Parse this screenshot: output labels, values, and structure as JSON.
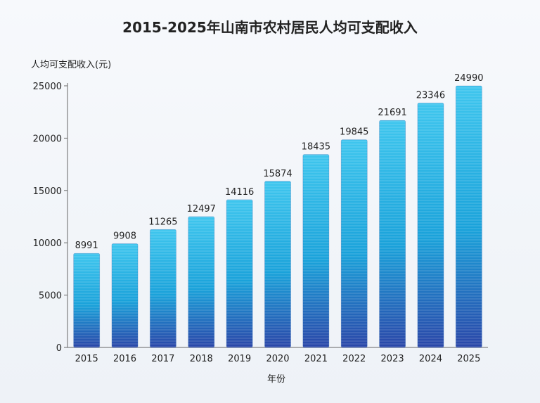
{
  "chart_data": {
    "type": "bar",
    "title": "2015-2025年山南市农村居民人均可支配收入",
    "ylabel": "人均可支配收入(元)",
    "xlabel": "年份",
    "categories": [
      "2015",
      "2016",
      "2017",
      "2018",
      "2019",
      "2020",
      "2021",
      "2022",
      "2023",
      "2024",
      "2025"
    ],
    "values": [
      8991,
      9908,
      11265,
      12497,
      14116,
      15874,
      18435,
      19845,
      21691,
      23346,
      24990
    ],
    "ylim": [
      0,
      25000
    ],
    "yticks": [
      0,
      5000,
      10000,
      15000,
      20000,
      25000
    ],
    "grid": false,
    "legend": "none",
    "colors": {
      "bar_top": "#3fc6ee",
      "bar_mid": "#1aa2da",
      "bar_bottom": "#2a46a8",
      "text": "#222222",
      "axis": "#555555"
    }
  }
}
